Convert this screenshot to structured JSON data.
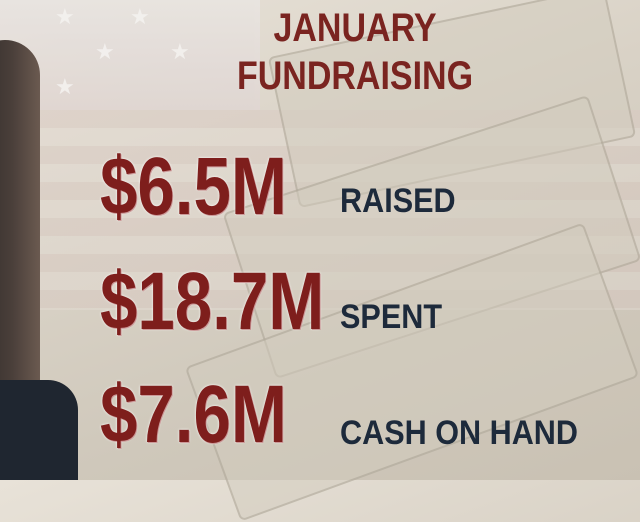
{
  "title": {
    "line1": "JANUARY",
    "line2": "FUNDRAISING"
  },
  "stats": [
    {
      "amount": "$6.5M",
      "label": "RAISED"
    },
    {
      "amount": "$18.7M",
      "label": "SPENT"
    },
    {
      "amount": "$7.6M",
      "label": "CASH ON HAND"
    }
  ],
  "colors": {
    "amount": "#7e1e1c",
    "label": "#1d2a3b",
    "title": "#7a2420"
  }
}
